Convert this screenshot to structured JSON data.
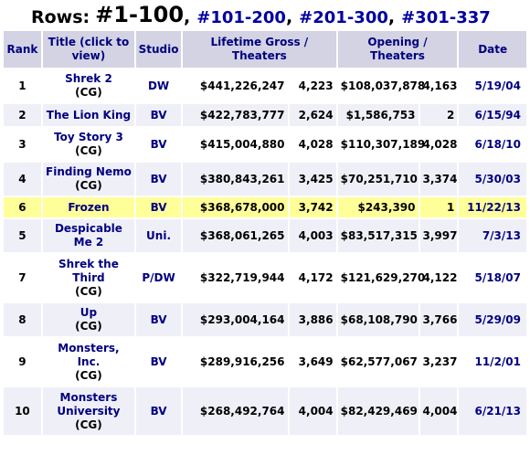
{
  "header": {
    "label": "Rows:",
    "current": "#1-100",
    "links": [
      "#101-200",
      "#201-300",
      "#301-337"
    ]
  },
  "columns": {
    "rank": "Rank",
    "title": "Title (click to view)",
    "studio": "Studio",
    "lifetime": "Lifetime Gross / Theaters",
    "opening": "Opening / Theaters",
    "date": "Date"
  },
  "rows": [
    {
      "rank": "1",
      "title": "Shrek 2",
      "tag": "(CG)",
      "studio": "DW",
      "gross": "$441,226,247",
      "theaters": "4,223",
      "opening": "$108,037,878",
      "open_theaters": "4,163",
      "date": "5/19/04",
      "highlight": false,
      "height": 36
    },
    {
      "rank": "2",
      "title": "The Lion King",
      "tag": "",
      "studio": "BV",
      "gross": "$422,783,777",
      "theaters": "2,624",
      "opening": "$1,586,753",
      "open_theaters": "2",
      "date": "6/15/94",
      "highlight": false,
      "height": 24
    },
    {
      "rank": "3",
      "title": "Toy Story 3",
      "tag": "(CG)",
      "studio": "BV",
      "gross": "$415,004,880",
      "theaters": "4,028",
      "opening": "$110,307,189",
      "open_theaters": "4,028",
      "date": "6/18/10",
      "highlight": false,
      "height": 36
    },
    {
      "rank": "4",
      "title": "Finding Nemo",
      "tag": "(CG)",
      "studio": "BV",
      "gross": "$380,843,261",
      "theaters": "3,425",
      "opening": "$70,251,710",
      "open_theaters": "3,374",
      "date": "5/30/03",
      "highlight": false,
      "height": 36
    },
    {
      "rank": "6",
      "title": "Frozen",
      "tag": "",
      "studio": "BV",
      "gross": "$368,678,000",
      "theaters": "3,742",
      "opening": "$243,390",
      "open_theaters": "1",
      "date": "11/22/13",
      "highlight": true,
      "height": 22
    },
    {
      "rank": "5",
      "title": "Despicable Me 2",
      "tag": "",
      "studio": "Uni.",
      "gross": "$368,061,265",
      "theaters": "4,003",
      "opening": "$83,517,315",
      "open_theaters": "3,997",
      "date": "7/3/13",
      "highlight": false,
      "height": 36
    },
    {
      "rank": "7",
      "title": "Shrek the Third",
      "tag": "(CG)",
      "studio": "P/DW",
      "gross": "$322,719,944",
      "theaters": "4,172",
      "opening": "$121,629,270",
      "open_theaters": "4,122",
      "date": "5/18/07",
      "highlight": false,
      "height": 52
    },
    {
      "rank": "8",
      "title": "Up",
      "tag": "(CG)",
      "studio": "BV",
      "gross": "$293,004,164",
      "theaters": "3,886",
      "opening": "$68,108,790",
      "open_theaters": "3,766",
      "date": "5/29/09",
      "highlight": false,
      "height": 36
    },
    {
      "rank": "9",
      "title": "Monsters, Inc.",
      "tag": "(CG)",
      "studio": "BV",
      "gross": "$289,916,256",
      "theaters": "3,649",
      "opening": "$62,577,067",
      "open_theaters": "3,237",
      "date": "11/2/01",
      "highlight": false,
      "height": 52
    },
    {
      "rank": "10",
      "title": "Monsters University",
      "tag": "(CG)",
      "studio": "BV",
      "gross": "$268,492,764",
      "theaters": "4,004",
      "opening": "$82,429,469",
      "open_theaters": "4,004",
      "date": "6/21/13",
      "highlight": false,
      "height": 52
    }
  ]
}
